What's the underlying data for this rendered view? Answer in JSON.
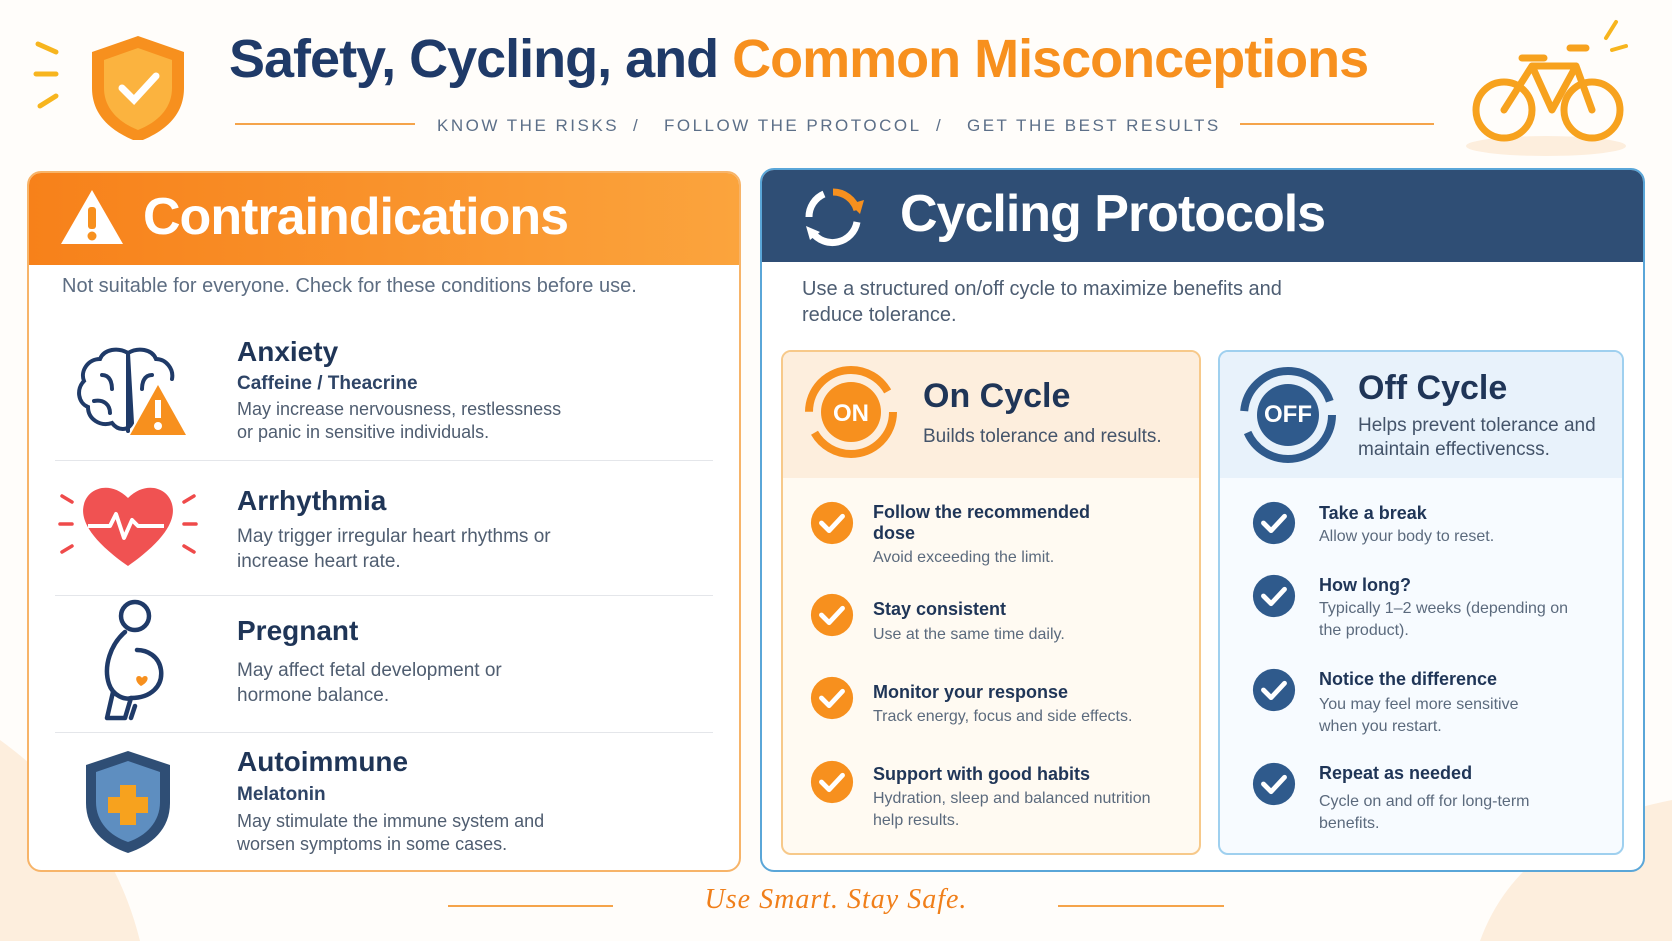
{
  "header": {
    "title_lead": "Safety, Cycling, and",
    "title_highlight": "Common Misconceptions",
    "taglines": [
      "KNOW THE RISKS",
      "FOLLOW THE PROTOCOL",
      "GET THE BEST RESULTS"
    ],
    "separator": "/"
  },
  "contraindications": {
    "title": "Contraindications",
    "intro": "Not suitable for everyone. Check for these conditions before use.",
    "items": [
      {
        "name": "Anxiety",
        "trigger": "Caffeine / Theacrine",
        "description": "May increase nervousness, restlessness or panic in sensitive individuals."
      },
      {
        "name": "Arrhythmia",
        "description": "May trigger irregular heart rhythms or increase heart rate."
      },
      {
        "name": "Pregnant",
        "description": "May affect fetal development or hormone balance."
      },
      {
        "name": "Autoimmune",
        "trigger": "Melatonin",
        "description": "May stimulate the immune system and worsen symptoms in some cases."
      }
    ]
  },
  "cycling": {
    "title": "Cycling Protocols",
    "intro": "Use a structured on/off cycle to maximize benefits and reduce tolerance.",
    "on_cycle": {
      "badge": "ON",
      "title": "On Cycle",
      "subtitle": "Builds tolerance and results.",
      "steps": [
        {
          "title": "Follow the recommended dose",
          "description": "Avoid exceeding the limit."
        },
        {
          "title": "Stay consistent",
          "description": "Use at the same time daily."
        },
        {
          "title": "Monitor your response",
          "description": "Track energy, focus and side effects."
        },
        {
          "title": "Support with good habits",
          "description": "Hydration, sleep and balanced nutrition help results."
        }
      ]
    },
    "off_cycle": {
      "badge": "OFF",
      "title": "Off Cycle",
      "subtitle": "Helps prevent tolerance and maintain effectivencss.",
      "steps": [
        {
          "title": "Take a break",
          "description": "Allow your body to reset."
        },
        {
          "title": "How long?",
          "description": "Typically 1–2 weeks (depending on the product)."
        },
        {
          "title": "Notice the difference",
          "description": "You may feel more sensitive when you restart."
        },
        {
          "title": "Repeat as needed",
          "description": "Cycle on and off for long-term benefits."
        }
      ]
    }
  },
  "footer": {
    "slogan": "Use Smart. Stay Safe."
  }
}
